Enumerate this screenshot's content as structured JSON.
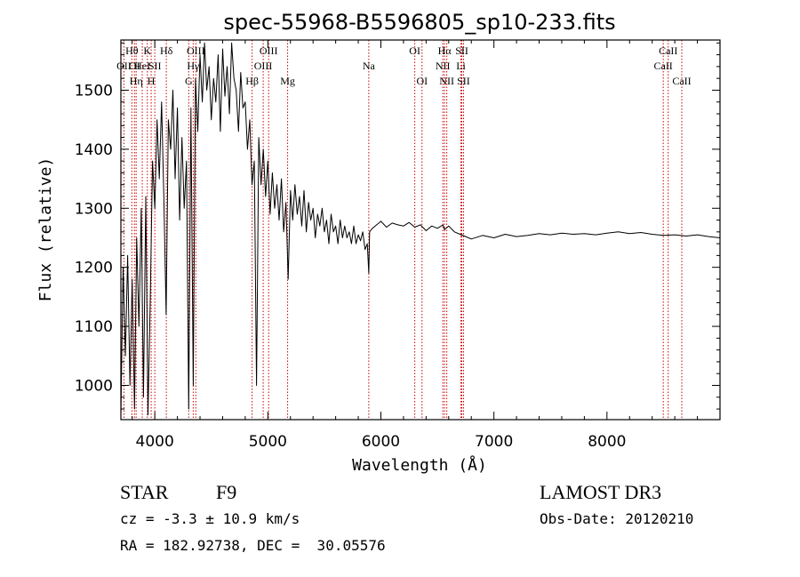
{
  "chart_data": {
    "type": "line",
    "title": "spec-55968-B5596805_sp10-233.fits",
    "xlabel": "Wavelength (Å)",
    "ylabel": "Flux (relative)",
    "xlim": [
      3700,
      9000
    ],
    "ylim": [
      942,
      1585
    ],
    "xticks": [
      4000,
      5000,
      6000,
      7000,
      8000
    ],
    "xtick_labels": [
      "4000",
      "5000",
      "6000",
      "7000",
      "8000"
    ],
    "yticks": [
      1000,
      1100,
      1200,
      1300,
      1400,
      1500
    ],
    "ytick_labels": [
      "1000",
      "1100",
      "1200",
      "1300",
      "1400",
      "1500"
    ],
    "line_color": "#000000",
    "marker_color": "#cc0000",
    "series": [
      {
        "name": "flux",
        "x": [
          3700,
          3720,
          3740,
          3760,
          3780,
          3800,
          3820,
          3840,
          3860,
          3880,
          3900,
          3920,
          3940,
          3960,
          3980,
          4000,
          4020,
          4040,
          4060,
          4080,
          4100,
          4120,
          4140,
          4160,
          4180,
          4200,
          4220,
          4240,
          4260,
          4280,
          4300,
          4320,
          4340,
          4360,
          4380,
          4400,
          4420,
          4440,
          4460,
          4480,
          4500,
          4520,
          4540,
          4560,
          4580,
          4600,
          4620,
          4640,
          4660,
          4680,
          4700,
          4720,
          4740,
          4760,
          4780,
          4800,
          4820,
          4840,
          4860,
          4880,
          4900,
          4920,
          4940,
          4960,
          4980,
          5000,
          5020,
          5040,
          5060,
          5080,
          5100,
          5120,
          5140,
          5160,
          5180,
          5200,
          5220,
          5240,
          5260,
          5280,
          5300,
          5320,
          5340,
          5360,
          5380,
          5400,
          5420,
          5440,
          5460,
          5480,
          5500,
          5520,
          5540,
          5560,
          5580,
          5600,
          5620,
          5640,
          5660,
          5680,
          5700,
          5720,
          5740,
          5760,
          5780,
          5800,
          5820,
          5840,
          5860,
          5880,
          5893,
          5900,
          5920,
          5950,
          6000,
          6050,
          6100,
          6150,
          6200,
          6250,
          6300,
          6350,
          6400,
          6450,
          6500,
          6550,
          6563,
          6600,
          6650,
          6700,
          6750,
          6800,
          6900,
          7000,
          7100,
          7200,
          7300,
          7400,
          7500,
          7600,
          7700,
          7800,
          7900,
          8000,
          8100,
          8200,
          8300,
          8400,
          8500,
          8600,
          8700,
          8800,
          8900,
          9000
        ],
        "y": [
          950,
          1200,
          1050,
          1220,
          1000,
          1180,
          960,
          1250,
          1100,
          1300,
          980,
          1320,
          950,
          1150,
          1380,
          1300,
          1450,
          1350,
          1480,
          1320,
          1120,
          1450,
          1400,
          1500,
          1350,
          1470,
          1280,
          1420,
          1300,
          1380,
          960,
          1470,
          1000,
          1520,
          1430,
          1560,
          1480,
          1580,
          1500,
          1540,
          1450,
          1520,
          1480,
          1560,
          1430,
          1570,
          1490,
          1540,
          1460,
          1580,
          1520,
          1500,
          1430,
          1530,
          1470,
          1480,
          1400,
          1450,
          1340,
          1380,
          1000,
          1420,
          1340,
          1400,
          1320,
          1380,
          1290,
          1360,
          1300,
          1340,
          1280,
          1350,
          1260,
          1310,
          1180,
          1330,
          1280,
          1340,
          1290,
          1320,
          1270,
          1330,
          1260,
          1310,
          1280,
          1300,
          1250,
          1290,
          1270,
          1300,
          1260,
          1280,
          1240,
          1290,
          1260,
          1270,
          1240,
          1280,
          1250,
          1270,
          1250,
          1260,
          1240,
          1270,
          1240,
          1255,
          1245,
          1260,
          1230,
          1240,
          1190,
          1260,
          1265,
          1270,
          1278,
          1268,
          1275,
          1272,
          1270,
          1276,
          1268,
          1272,
          1262,
          1270,
          1266,
          1272,
          1264,
          1270,
          1260,
          1256,
          1252,
          1248,
          1254,
          1250,
          1256,
          1252,
          1254,
          1257,
          1255,
          1258,
          1256,
          1257,
          1255,
          1258,
          1260,
          1257,
          1259,
          1256,
          1254,
          1255,
          1253,
          1255,
          1252,
          1250
        ]
      }
    ],
    "line_markers": [
      {
        "x": 3727,
        "label": "OII",
        "row": 2
      },
      {
        "x": 3797,
        "label": "Hθ",
        "row": 1
      },
      {
        "x": 3820,
        "label": "OI",
        "row": 2
      },
      {
        "x": 3835,
        "label": "Hη",
        "row": 3
      },
      {
        "x": 3889,
        "label": "HeI",
        "row": 2
      },
      {
        "x": 3934,
        "label": "K",
        "row": 1
      },
      {
        "x": 3968,
        "label": "H",
        "row": 3
      },
      {
        "x": 4000,
        "label": "SII",
        "row": 2
      },
      {
        "x": 4102,
        "label": "Hδ",
        "row": 1
      },
      {
        "x": 4300,
        "label": "G",
        "row": 3
      },
      {
        "x": 4340,
        "label": "Hγ",
        "row": 2
      },
      {
        "x": 4363,
        "label": "OIII",
        "row": 1
      },
      {
        "x": 4861,
        "label": "Hβ",
        "row": 3
      },
      {
        "x": 4959,
        "label": "OIII",
        "row": 2
      },
      {
        "x": 5007,
        "label": "OIII",
        "row": 1
      },
      {
        "x": 5175,
        "label": "Mg",
        "row": 3
      },
      {
        "x": 5893,
        "label": "Na",
        "row": 2
      },
      {
        "x": 6300,
        "label": "OI",
        "row": 1
      },
      {
        "x": 6364,
        "label": "OI",
        "row": 3
      },
      {
        "x": 6548,
        "label": "NII",
        "row": 2
      },
      {
        "x": 6563,
        "label": "Hα",
        "row": 1
      },
      {
        "x": 6583,
        "label": "NII",
        "row": 3
      },
      {
        "x": 6708,
        "label": "Li",
        "row": 2
      },
      {
        "x": 6716,
        "label": "SII",
        "row": 1
      },
      {
        "x": 6731,
        "label": "SII",
        "row": 3
      },
      {
        "x": 8498,
        "label": "CaII",
        "row": 2
      },
      {
        "x": 8542,
        "label": "CaII",
        "row": 1
      },
      {
        "x": 8662,
        "label": "CaII",
        "row": 3
      }
    ]
  },
  "info": {
    "class": "STAR",
    "subclass": "F9",
    "survey": "LAMOST DR3",
    "redshift": "cz = -3.3 ± 10.9 km/s",
    "obs_date": "Obs-Date: 20120210",
    "coords": "RA = 182.92738, DEC =  30.05576"
  }
}
